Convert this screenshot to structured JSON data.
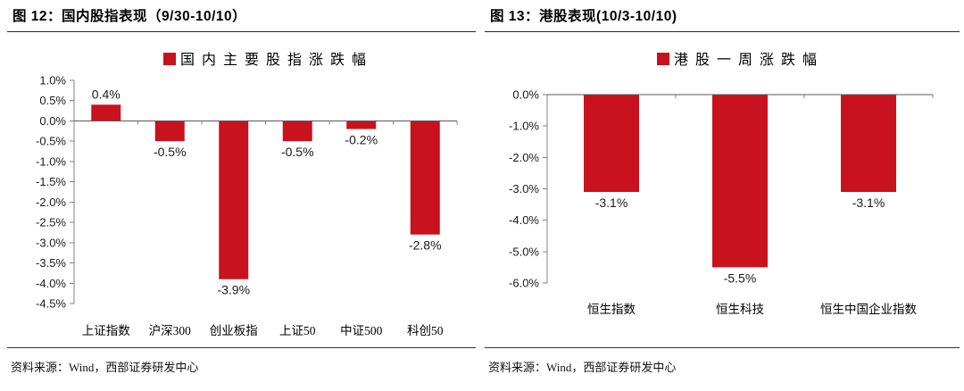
{
  "page": {
    "background": "#ffffff"
  },
  "colors": {
    "bar_red": "#C8121E",
    "axis_gray": "#808080",
    "zero_line": "#595959",
    "text": "#1a1a1a",
    "rule": "#262626"
  },
  "panels": [
    {
      "title": "图 12：国内股指表现（9/30-10/10）",
      "source": "资料来源：Wind，西部证券研发中心"
    },
    {
      "title": "图 13：港股表现(10/3-10/10)",
      "source": "资料来源：Wind，西部证券研发中心"
    }
  ],
  "chart_data": [
    {
      "type": "bar",
      "title": "",
      "legend": "国内主要股指涨跌幅",
      "legend_position": "top-center",
      "categories": [
        "上证指数",
        "沪深300",
        "创业板指",
        "上证50",
        "中证500",
        "科创50"
      ],
      "values": [
        0.4,
        -0.5,
        -3.9,
        -0.5,
        -0.2,
        -2.8
      ],
      "value_labels": [
        "0.4%",
        "-0.5%",
        "-3.9%",
        "-0.5%",
        "-0.2%",
        "-2.8%"
      ],
      "xlabel": "",
      "ylabel": "",
      "ylim": [
        -4.5,
        1.0
      ],
      "ytick_step": 0.5,
      "ytick_suffix": "%",
      "grid": false,
      "bar_color": "#C8121E"
    },
    {
      "type": "bar",
      "title": "",
      "legend": "港股一周涨跌幅",
      "legend_position": "top-center",
      "categories": [
        "恒生指数",
        "恒生科技",
        "恒生中国企业指数"
      ],
      "values": [
        -3.1,
        -5.5,
        -3.1
      ],
      "value_labels": [
        "-3.1%",
        "-5.5%",
        "-3.1%"
      ],
      "xlabel": "",
      "ylabel": "",
      "ylim": [
        -6.0,
        0.0
      ],
      "ytick_step": 1.0,
      "ytick_suffix": "%",
      "grid": false,
      "bar_color": "#C8121E"
    }
  ]
}
